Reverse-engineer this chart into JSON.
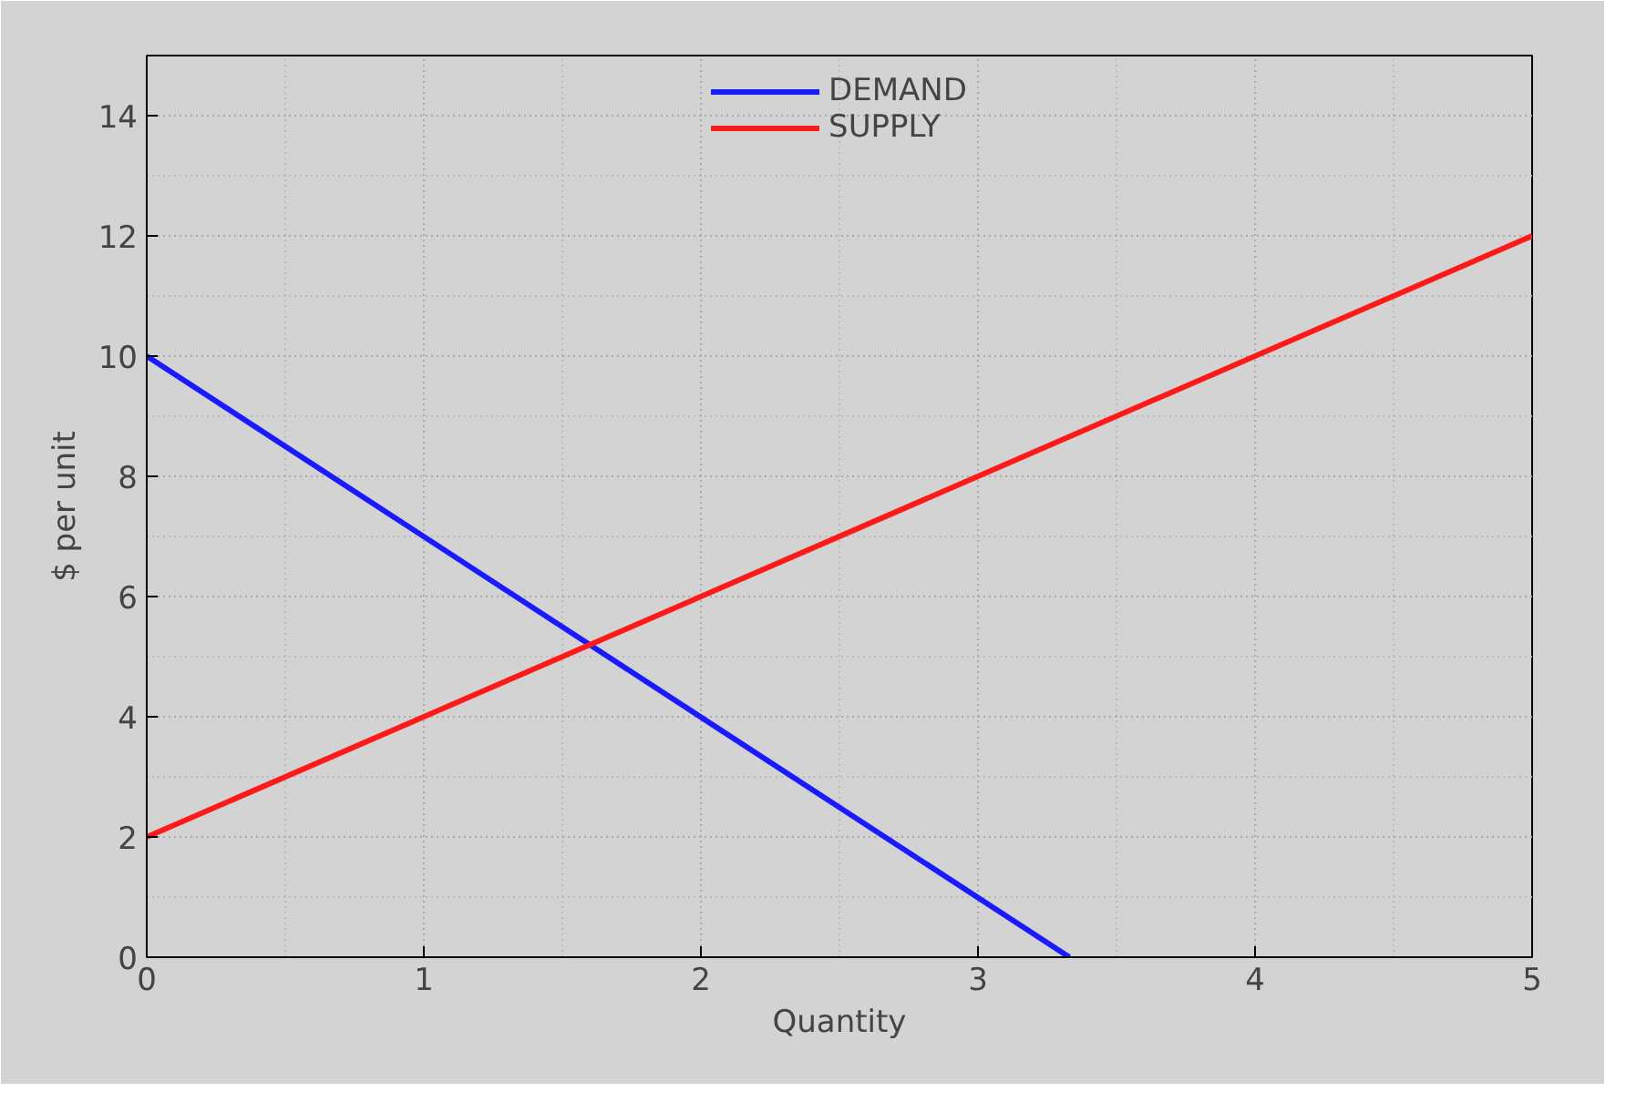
{
  "chart_data": {
    "type": "line",
    "xlabel": "Quantity",
    "ylabel": "$ per unit",
    "xlim": [
      0,
      5
    ],
    "ylim": [
      0,
      15
    ],
    "xticks": [
      0,
      1,
      2,
      3,
      4,
      5
    ],
    "yticks": [
      0,
      2,
      4,
      6,
      8,
      10,
      12,
      14
    ],
    "grid": true,
    "legend": "top",
    "marker": "none",
    "line_style": "solid",
    "series": [
      {
        "name": "DEMAND",
        "color": "#1a1aff",
        "x": [
          0,
          3.33
        ],
        "values": [
          10,
          0
        ]
      },
      {
        "name": "SUPPLY",
        "color": "#ff1a1a",
        "x": [
          0,
          5
        ],
        "values": [
          2,
          12
        ]
      }
    ]
  }
}
